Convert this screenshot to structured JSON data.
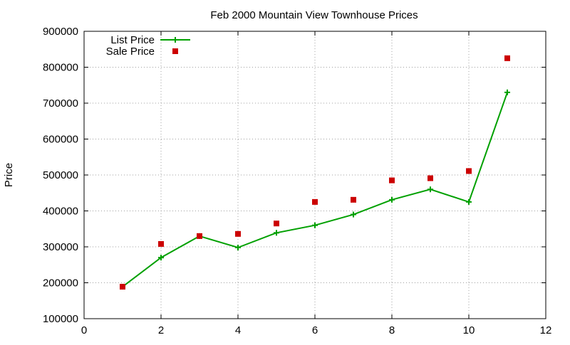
{
  "chart_data": {
    "type": "line",
    "title": "Feb 2000 Mountain View Townhouse Prices",
    "xlabel": "",
    "ylabel": "Price",
    "xlim": [
      0,
      12
    ],
    "ylim": [
      100000,
      900000
    ],
    "x_ticks": [
      0,
      2,
      4,
      6,
      8,
      10,
      12
    ],
    "y_ticks": [
      100000,
      200000,
      300000,
      400000,
      500000,
      600000,
      700000,
      800000,
      900000
    ],
    "grid": true,
    "legend_position": "top-left",
    "series": [
      {
        "name": "List Price",
        "style": "line-with-plus-markers",
        "color": "#00a000",
        "points": [
          [
            1,
            189000
          ],
          [
            2,
            270000
          ],
          [
            3,
            330000
          ],
          [
            4,
            298000
          ],
          [
            5,
            339000
          ],
          [
            6,
            360000
          ],
          [
            7,
            390000
          ],
          [
            8,
            431000
          ],
          [
            9,
            460000
          ],
          [
            10,
            425000
          ],
          [
            11,
            730000
          ]
        ]
      },
      {
        "name": "Sale Price",
        "style": "square-markers",
        "color": "#cc0000",
        "points": [
          [
            1,
            189000
          ],
          [
            2,
            308000
          ],
          [
            3,
            330000
          ],
          [
            4,
            336000
          ],
          [
            5,
            365000
          ],
          [
            6,
            425000
          ],
          [
            7,
            431000
          ],
          [
            8,
            485000
          ],
          [
            9,
            491000
          ],
          [
            10,
            511000
          ],
          [
            11,
            825000
          ]
        ]
      }
    ]
  }
}
